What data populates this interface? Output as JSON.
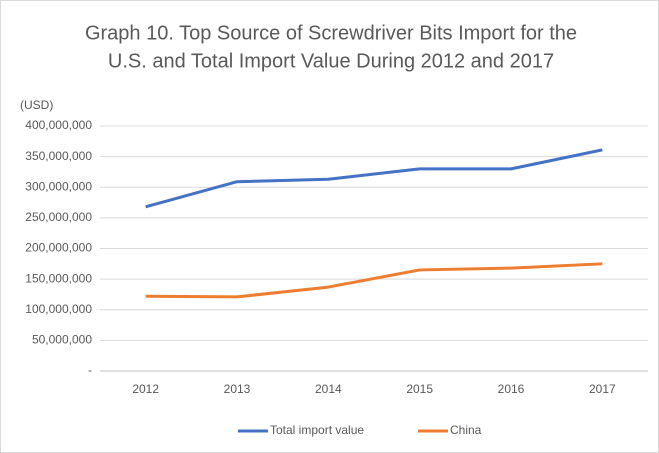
{
  "chart_data": {
    "type": "line",
    "title": [
      "Graph 10. Top Source of Screwdriver Bits Import for the",
      "U.S. and Total Import Value During 2012 and 2017"
    ],
    "y_label": "(USD)",
    "categories": [
      "2012",
      "2013",
      "2014",
      "2015",
      "2016",
      "2017"
    ],
    "series": [
      {
        "name": "Total import value",
        "color": "#4472c4",
        "values": [
          268000000,
          309000000,
          313000000,
          330000000,
          330000000,
          361000000
        ]
      },
      {
        "name": "China",
        "color": "#ed7d31",
        "values": [
          122000000,
          121000000,
          137000000,
          165000000,
          168000000,
          175000000
        ]
      }
    ],
    "ylim": [
      0,
      400000000
    ],
    "yticks": [
      {
        "value": 0,
        "label": "-"
      },
      {
        "value": 50000000,
        "label": "50,000,000"
      },
      {
        "value": 100000000,
        "label": "100,000,000"
      },
      {
        "value": 150000000,
        "label": "150,000,000"
      },
      {
        "value": 200000000,
        "label": "200,000,000"
      },
      {
        "value": 250000000,
        "label": "250,000,000"
      },
      {
        "value": 300000000,
        "label": "300,000,000"
      },
      {
        "value": 350000000,
        "label": "350,000,000"
      },
      {
        "value": 400000000,
        "label": "400,000,000"
      }
    ],
    "grid": true,
    "legend": "bottom"
  }
}
